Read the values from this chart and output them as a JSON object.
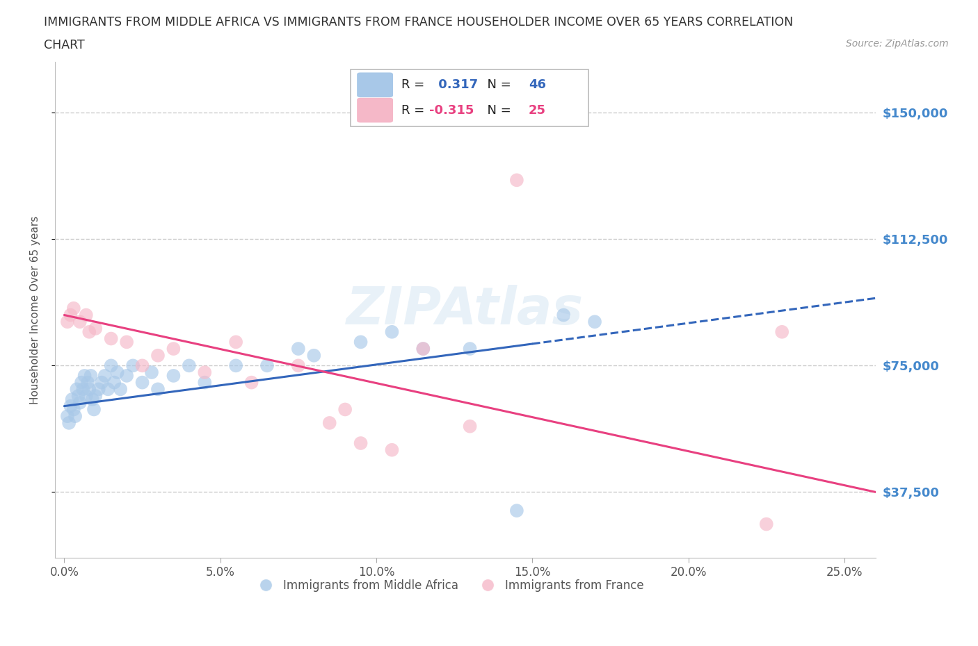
{
  "title_line1": "IMMIGRANTS FROM MIDDLE AFRICA VS IMMIGRANTS FROM FRANCE HOUSEHOLDER INCOME OVER 65 YEARS CORRELATION",
  "title_line2": "CHART",
  "source": "Source: ZipAtlas.com",
  "ylabel": "Householder Income Over 65 years",
  "xlabel_ticks": [
    "0.0%",
    "5.0%",
    "10.0%",
    "15.0%",
    "20.0%",
    "25.0%"
  ],
  "xlabel_values": [
    0.0,
    5.0,
    10.0,
    15.0,
    20.0,
    25.0
  ],
  "ytick_labels": [
    "$37,500",
    "$75,000",
    "$112,500",
    "$150,000"
  ],
  "ytick_values": [
    37500,
    75000,
    112500,
    150000
  ],
  "ylim": [
    18000,
    165000
  ],
  "xlim": [
    -0.3,
    26.0
  ],
  "blue_color": "#a8c8e8",
  "pink_color": "#f5b8c8",
  "blue_line_color": "#3366bb",
  "pink_line_color": "#e84080",
  "R_blue": 0.317,
  "N_blue": 46,
  "R_pink": -0.315,
  "N_pink": 25,
  "legend_label_blue": "Immigrants from Middle Africa",
  "legend_label_pink": "Immigrants from France",
  "blue_x": [
    0.1,
    0.15,
    0.2,
    0.25,
    0.3,
    0.35,
    0.4,
    0.45,
    0.5,
    0.55,
    0.6,
    0.65,
    0.7,
    0.75,
    0.8,
    0.85,
    0.9,
    0.95,
    1.0,
    1.1,
    1.2,
    1.3,
    1.4,
    1.5,
    1.6,
    1.7,
    1.8,
    2.0,
    2.2,
    2.5,
    2.8,
    3.0,
    3.5,
    4.0,
    4.5,
    5.5,
    6.5,
    7.5,
    8.0,
    9.5,
    10.5,
    11.5,
    13.0,
    14.5,
    16.0,
    17.0
  ],
  "blue_y": [
    60000,
    58000,
    63000,
    65000,
    62000,
    60000,
    68000,
    66000,
    64000,
    70000,
    68000,
    72000,
    66000,
    70000,
    68000,
    72000,
    65000,
    62000,
    66000,
    68000,
    70000,
    72000,
    68000,
    75000,
    70000,
    73000,
    68000,
    72000,
    75000,
    70000,
    73000,
    68000,
    72000,
    75000,
    70000,
    75000,
    75000,
    80000,
    78000,
    82000,
    85000,
    80000,
    80000,
    32000,
    90000,
    88000
  ],
  "pink_x": [
    0.1,
    0.2,
    0.3,
    0.5,
    0.7,
    0.8,
    1.0,
    1.5,
    2.0,
    2.5,
    3.5,
    4.5,
    5.5,
    6.0,
    7.5,
    8.5,
    9.5,
    10.5,
    11.5,
    13.0,
    14.5,
    22.5,
    23.0,
    9.0,
    3.0
  ],
  "pink_y": [
    88000,
    90000,
    92000,
    88000,
    90000,
    85000,
    86000,
    83000,
    82000,
    75000,
    80000,
    73000,
    82000,
    70000,
    75000,
    58000,
    52000,
    50000,
    80000,
    57000,
    130000,
    28000,
    85000,
    62000,
    78000
  ],
  "background_color": "#ffffff",
  "grid_color": "#cccccc",
  "title_color": "#333333",
  "right_tick_color": "#4488cc",
  "watermark": "ZIPAtlas",
  "blue_line_start_x": 0.0,
  "blue_line_end_x": 26.0,
  "blue_line_solid_end_x": 15.0,
  "pink_line_start_x": 0.0,
  "pink_line_end_x": 26.0,
  "blue_line_y_at_0": 63000,
  "blue_line_y_at_26": 95000,
  "pink_line_y_at_0": 90000,
  "pink_line_y_at_26": 37500
}
